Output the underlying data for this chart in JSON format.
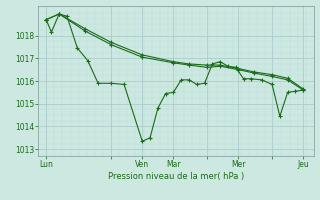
{
  "background_color": "#cce8e0",
  "grid_color_major": "#aacccc",
  "grid_color_minor": "#bbdddd",
  "line_color": "#1a6b1a",
  "ylabel_text": "Pression niveau de la mer( hPa )",
  "yticks": [
    1013,
    1014,
    1015,
    1016,
    1017,
    1018
  ],
  "ylim": [
    1012.7,
    1019.3
  ],
  "xtick_labels": [
    "Lun",
    "",
    "Ven",
    "Mar",
    "",
    "Mer",
    "",
    "Jeu"
  ],
  "xtick_positions": [
    0,
    25,
    37,
    49,
    62,
    74,
    87,
    99
  ],
  "xlim": [
    -3,
    103
  ],
  "series1": [
    [
      0,
      1018.7
    ],
    [
      2,
      1018.15
    ],
    [
      5,
      1018.95
    ],
    [
      8,
      1018.85
    ],
    [
      12,
      1017.45
    ],
    [
      16,
      1016.9
    ],
    [
      20,
      1015.9
    ],
    [
      25,
      1015.9
    ],
    [
      30,
      1015.85
    ],
    [
      37,
      1013.35
    ],
    [
      40,
      1013.5
    ],
    [
      43,
      1014.8
    ],
    [
      46,
      1015.45
    ],
    [
      49,
      1015.5
    ],
    [
      52,
      1016.05
    ],
    [
      55,
      1016.05
    ],
    [
      58,
      1015.85
    ],
    [
      61,
      1015.9
    ],
    [
      64,
      1016.75
    ],
    [
      67,
      1016.85
    ],
    [
      70,
      1016.65
    ],
    [
      73,
      1016.6
    ],
    [
      76,
      1016.1
    ],
    [
      79,
      1016.1
    ],
    [
      83,
      1016.05
    ],
    [
      87,
      1015.85
    ],
    [
      90,
      1014.45
    ],
    [
      93,
      1015.5
    ],
    [
      96,
      1015.55
    ],
    [
      99,
      1015.6
    ]
  ],
  "series2": [
    [
      0,
      1018.7
    ],
    [
      5,
      1018.95
    ],
    [
      15,
      1018.2
    ],
    [
      25,
      1017.6
    ],
    [
      37,
      1017.05
    ],
    [
      49,
      1016.8
    ],
    [
      55,
      1016.7
    ],
    [
      62,
      1016.6
    ],
    [
      67,
      1016.65
    ],
    [
      74,
      1016.5
    ],
    [
      80,
      1016.35
    ],
    [
      87,
      1016.2
    ],
    [
      93,
      1016.05
    ],
    [
      99,
      1015.6
    ]
  ],
  "series3": [
    [
      0,
      1018.7
    ],
    [
      5,
      1018.95
    ],
    [
      15,
      1018.3
    ],
    [
      25,
      1017.7
    ],
    [
      37,
      1017.15
    ],
    [
      49,
      1016.85
    ],
    [
      55,
      1016.75
    ],
    [
      62,
      1016.7
    ],
    [
      67,
      1016.7
    ],
    [
      74,
      1016.55
    ],
    [
      80,
      1016.4
    ],
    [
      87,
      1016.28
    ],
    [
      93,
      1016.12
    ],
    [
      99,
      1015.65
    ]
  ]
}
